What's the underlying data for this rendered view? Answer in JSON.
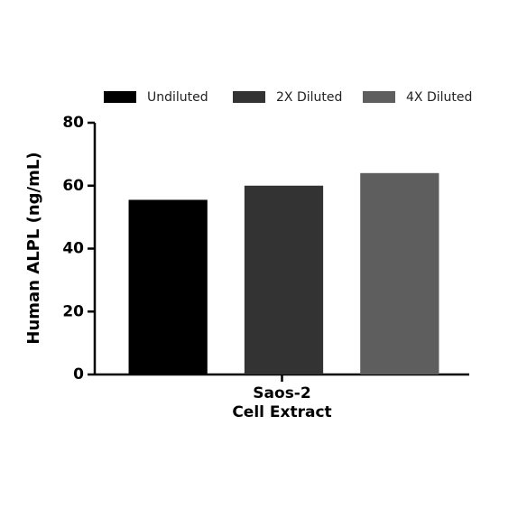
{
  "chart_data": {
    "type": "bar",
    "y_label": "Human ALPL (ng/mL)",
    "categories": [
      "Saos-2\nCell Extract"
    ],
    "series": [
      {
        "name": "Undiluted",
        "color": "#000000",
        "values": [
          55.5
        ]
      },
      {
        "name": "2X Diluted",
        "color": "#333333",
        "values": [
          60
        ]
      },
      {
        "name": "4X Diluted",
        "color": "#5e5e5e",
        "values": [
          64
        ]
      }
    ],
    "ylim": [
      0,
      80
    ],
    "yticks": [
      0,
      20,
      40,
      60,
      80
    ]
  }
}
